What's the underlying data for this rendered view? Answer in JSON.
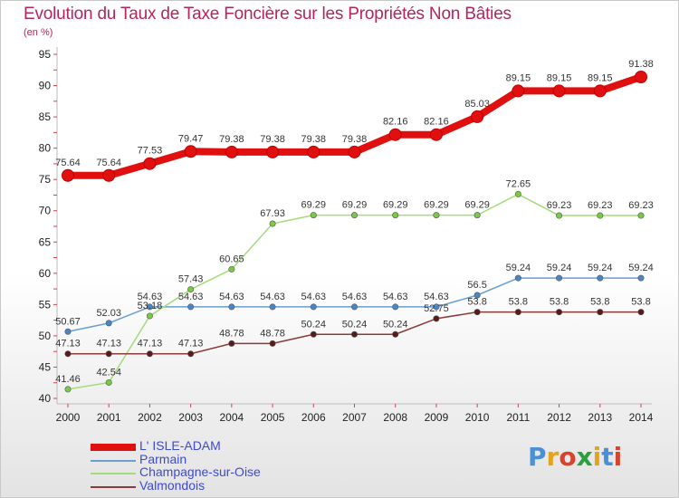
{
  "page": {
    "title": "Evolution du Taux de Taxe Foncière sur les Propriétés Non Bâties",
    "unit": "(en %)"
  },
  "logo": {
    "text": "Proxiti",
    "letter_colors": [
      "#4a90d9",
      "#e8a21a",
      "#d9432c",
      "#2f9e3f",
      "#e8a21a",
      "#4a90d9",
      "#d9432c"
    ]
  },
  "chart_data": {
    "type": "line",
    "title": "Evolution du Taux de Taxe Foncière sur les Propriétés Non Bâties",
    "ylabel": "(en %)",
    "xlabel": "",
    "x": [
      "2000",
      "2001",
      "2002",
      "2003",
      "2004",
      "2005",
      "2006",
      "2007",
      "2008",
      "2009",
      "2010",
      "2011",
      "2012",
      "2013",
      "2014"
    ],
    "ylim": [
      40,
      95
    ],
    "yticks": [
      40,
      45,
      50,
      55,
      60,
      65,
      70,
      75,
      80,
      85,
      90,
      95
    ],
    "grid": false,
    "legend": "bottom-left",
    "series": [
      {
        "name": "L' ISLE-ADAM",
        "color": "#e01010",
        "values": [
          75.64,
          75.64,
          77.53,
          79.47,
          79.38,
          79.38,
          79.38,
          79.38,
          82.16,
          82.16,
          85.03,
          89.15,
          89.15,
          89.15,
          91.38
        ],
        "labels": [
          "75.64",
          "75.64",
          "77.53",
          "79.47",
          "79.38",
          "79.38",
          "79.38",
          "79.38",
          "82.16",
          "82.16",
          "85.03",
          "89.15",
          "89.15",
          "89.15",
          "91.38"
        ]
      },
      {
        "name": "Parmain",
        "color": "#6a9fd0",
        "point_color": "#4a86c5",
        "values": [
          50.67,
          52.03,
          54.63,
          54.63,
          54.63,
          54.63,
          54.63,
          54.63,
          54.63,
          54.63,
          56.5,
          59.24,
          59.24,
          59.24,
          59.24
        ],
        "labels": [
          "50.67",
          "52.03",
          "54.63",
          "54.63",
          "54.63",
          "54.63",
          "54.63",
          "54.63",
          "54.63",
          "54.63",
          "56.5",
          "59.24",
          "59.24",
          "59.24",
          "59.24"
        ]
      },
      {
        "name": "Champagne-sur-Oise",
        "color": "#a3dc7c",
        "point_color": "#7ac943",
        "values": [
          41.46,
          42.54,
          53.18,
          57.43,
          60.65,
          67.93,
          69.29,
          69.29,
          69.29,
          69.29,
          69.29,
          72.65,
          69.23,
          69.23,
          69.23
        ],
        "labels": [
          "41.46",
          "42.54",
          "53.18",
          "57.43",
          "60.65",
          "67.93",
          "69.29",
          "69.29",
          "69.29",
          "69.29",
          "69.29",
          "72.65",
          "69.23",
          "69.23",
          "69.23"
        ]
      },
      {
        "name": "Valmondois",
        "color": "#8a3a3a",
        "point_color": "#5a1a1a",
        "values": [
          47.13,
          47.13,
          47.13,
          47.13,
          48.78,
          48.78,
          50.24,
          50.24,
          50.24,
          52.75,
          53.8,
          53.8,
          53.8,
          53.8,
          53.8
        ],
        "labels": [
          "47.13",
          "47.13",
          "47.13",
          "47.13",
          "48.78",
          "48.78",
          "50.24",
          "50.24",
          "50.24",
          "52.75",
          "53.8",
          "53.8",
          "53.8",
          "53.8",
          "53.8"
        ]
      }
    ]
  }
}
